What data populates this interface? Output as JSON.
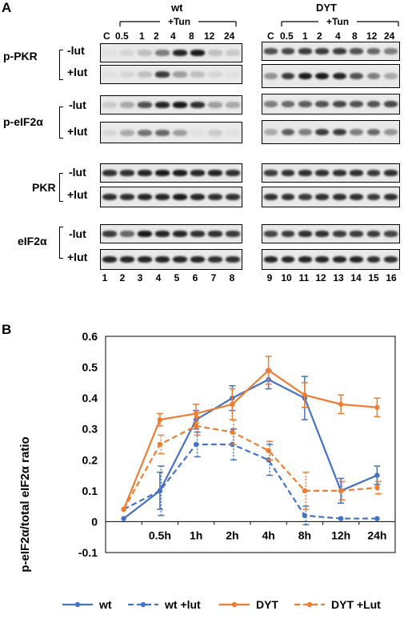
{
  "panel_a": {
    "letter": "A",
    "group_wt": "wt",
    "group_dyt": "DYT",
    "tun_label": "+Tun",
    "lanes_header": [
      "C",
      "0.5",
      "1",
      "2",
      "4",
      "8",
      "12",
      "24"
    ],
    "row_labels": {
      "ppkr": "p-PKR",
      "peif": "p-eIF2α",
      "pkr": "PKR",
      "eif": "eIF2α"
    },
    "minus_lut": "-lut",
    "plus_lut": "+lut",
    "lane_numbers_wt": [
      "1",
      "2",
      "3",
      "4",
      "5",
      "6",
      "7",
      "8"
    ],
    "lane_numbers_dyt": [
      "9",
      "10",
      "11",
      "12",
      "13",
      "14",
      "15",
      "16"
    ],
    "band_intensity": {
      "ppkr_minus_wt": [
        0.05,
        0.1,
        0.2,
        0.5,
        0.9,
        0.95,
        0.2,
        0.15
      ],
      "ppkr_plus_wt": [
        0.05,
        0.1,
        0.2,
        0.8,
        0.35,
        0.2,
        0.1,
        0.05
      ],
      "ppkr_minus_dyt": [
        0.7,
        0.75,
        0.8,
        0.8,
        0.8,
        0.7,
        0.6,
        0.5
      ],
      "ppkr_plus_dyt": [
        0.4,
        0.8,
        0.95,
        0.95,
        0.9,
        0.7,
        0.5,
        0.3
      ],
      "peif_minus_wt": [
        0.15,
        0.3,
        0.7,
        0.9,
        0.95,
        0.85,
        0.35,
        0.3
      ],
      "peif_plus_wt": [
        0.1,
        0.3,
        0.55,
        0.6,
        0.35,
        0.05,
        0.15,
        0.05
      ],
      "peif_minus_dyt": [
        0.5,
        0.6,
        0.65,
        0.7,
        0.75,
        0.7,
        0.7,
        0.75
      ],
      "peif_plus_dyt": [
        0.3,
        0.65,
        0.5,
        0.8,
        0.8,
        0.5,
        0.6,
        0.4
      ],
      "pkr_minus_wt": [
        0.85,
        0.85,
        0.9,
        0.95,
        0.95,
        0.9,
        0.9,
        0.85
      ],
      "pkr_plus_wt": [
        0.85,
        0.85,
        0.9,
        0.9,
        0.95,
        0.9,
        0.85,
        0.85
      ],
      "pkr_minus_dyt": [
        0.8,
        0.85,
        0.85,
        0.85,
        0.85,
        0.85,
        0.8,
        0.85
      ],
      "pkr_plus_dyt": [
        0.85,
        0.85,
        0.8,
        0.85,
        0.85,
        0.85,
        0.8,
        0.85
      ],
      "eif_minus_wt": [
        0.8,
        0.6,
        0.95,
        0.9,
        0.9,
        0.85,
        0.85,
        0.8
      ],
      "eif_plus_wt": [
        0.9,
        0.9,
        0.9,
        0.9,
        0.9,
        0.9,
        0.85,
        0.85
      ],
      "eif_minus_dyt": [
        0.75,
        0.8,
        0.85,
        0.85,
        0.8,
        0.8,
        0.8,
        0.75
      ],
      "eif_plus_dyt": [
        0.9,
        0.9,
        0.9,
        0.9,
        0.9,
        0.9,
        0.85,
        0.85
      ]
    }
  },
  "panel_b": {
    "letter": "B"
  },
  "chart_data": {
    "type": "line",
    "title": "",
    "xlabel": "",
    "ylabel": "p-eIF2α/total eIF2α ratio",
    "categories": [
      "",
      "0.5h",
      "1h",
      "2h",
      "4h",
      "8h",
      "12h",
      "24h"
    ],
    "ylim": [
      -0.1,
      0.6
    ],
    "yticks": [
      "-0.1",
      "0",
      "0.1",
      "0.2",
      "0.3",
      "0.4",
      "0.5",
      "0.6"
    ],
    "grid": false,
    "legend_position": "bottom",
    "series": [
      {
        "name": "wt",
        "color": "#4472C4",
        "dashed": false,
        "values": [
          0.01,
          0.1,
          0.33,
          0.4,
          0.46,
          0.4,
          0.1,
          0.15
        ],
        "errors": [
          0.0,
          0.06,
          0.03,
          0.04,
          0.03,
          0.07,
          0.04,
          0.03
        ]
      },
      {
        "name": "wt +lut",
        "color": "#4472C4",
        "dashed": true,
        "values": [
          0.04,
          0.1,
          0.25,
          0.25,
          0.2,
          0.02,
          0.01,
          0.01
        ],
        "errors": [
          0.0,
          0.08,
          0.04,
          0.05,
          0.05,
          0.03,
          0.0,
          0.0
        ]
      },
      {
        "name": "DYT",
        "color": "#ED7D31",
        "dashed": false,
        "values": [
          0.04,
          0.33,
          0.35,
          0.38,
          0.49,
          0.41,
          0.38,
          0.37
        ],
        "errors": [
          0.0,
          0.02,
          0.03,
          0.05,
          0.045,
          0.04,
          0.03,
          0.03
        ]
      },
      {
        "name": "DYT +Lut",
        "color": "#ED7D31",
        "dashed": true,
        "values": [
          0.04,
          0.25,
          0.31,
          0.29,
          0.23,
          0.1,
          0.1,
          0.11
        ],
        "errors": [
          0.0,
          0.03,
          0.03,
          0.04,
          0.03,
          0.06,
          0.03,
          0.02
        ]
      }
    ]
  }
}
